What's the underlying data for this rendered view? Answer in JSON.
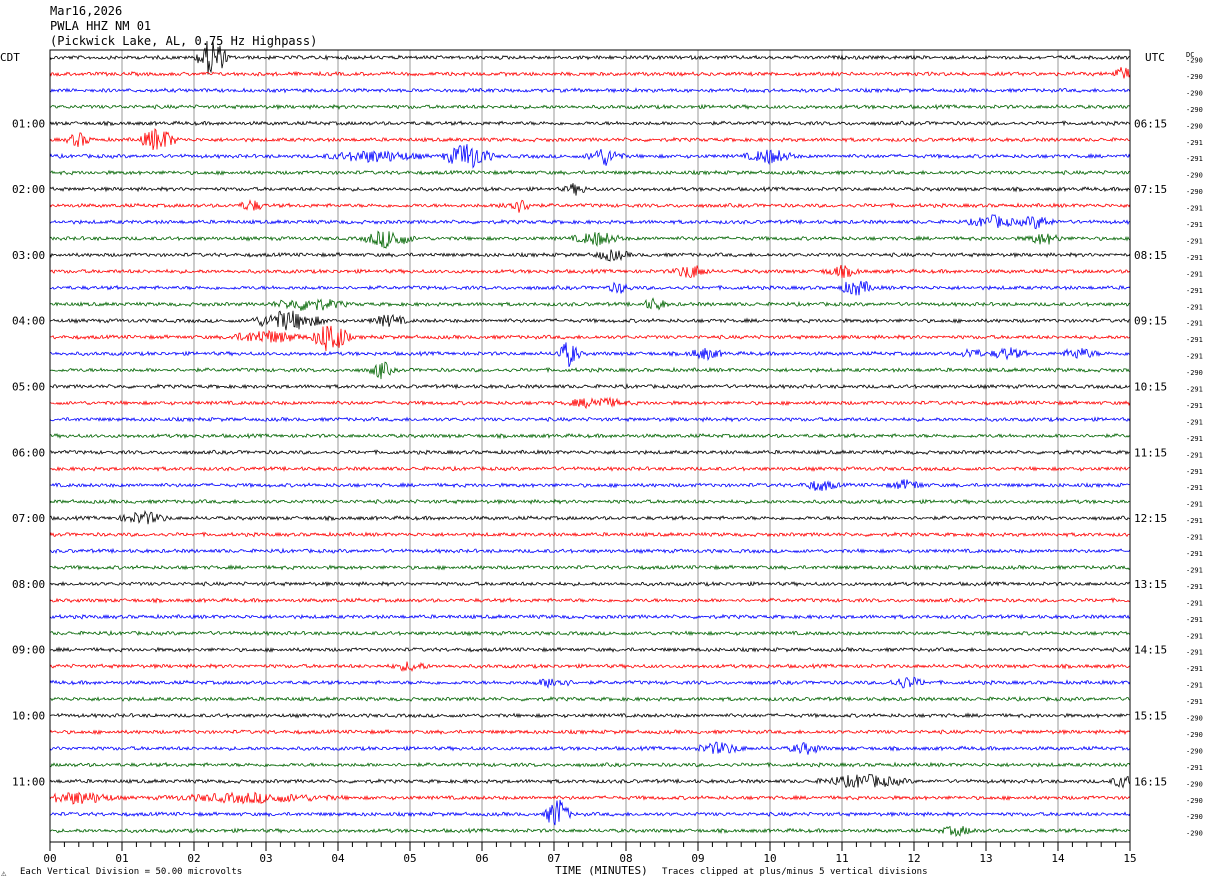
{
  "header": {
    "date": "Mar16,2026",
    "station": "PWLA HHZ NM 01",
    "description": "(Pickwick Lake, AL, 0.75 Hz Highpass)"
  },
  "left_zone_label": "CDT",
  "right_zone_label": "UTC",
  "dc_header": "DC",
  "footer": {
    "scale_text": "Each Vertical Division =   50.00 microvolts",
    "clip_text": "Traces clipped at plus/minus 5 vertical divisions",
    "corner_mark": "⚠"
  },
  "colors": {
    "trace": [
      "#000000",
      "#ff0000",
      "#0000ff",
      "#006400"
    ],
    "grid": "#808080"
  },
  "chart_data": {
    "type": "helicorder",
    "xlabel": "TIME (MINUTES)",
    "x_ticks": [
      "00",
      "01",
      "02",
      "03",
      "04",
      "05",
      "06",
      "07",
      "08",
      "09",
      "10",
      "11",
      "12",
      "13",
      "14",
      "15"
    ],
    "xlim": [
      0,
      15
    ],
    "row_count": 48,
    "left_hour_labels": [
      "01:00",
      "02:00",
      "03:00",
      "04:00",
      "05:00",
      "06:00",
      "07:00",
      "08:00",
      "09:00",
      "10:00",
      "11:00"
    ],
    "right_hour_labels": [
      "06:15",
      "07:15",
      "08:15",
      "09:15",
      "10:15",
      "11:15",
      "12:15",
      "13:15",
      "14:15",
      "15:15",
      "16:15"
    ],
    "hour_label_first_row": 4,
    "dc_offsets": [
      "-290",
      "-290",
      "-290",
      "-290",
      "-290",
      "-291",
      "-291",
      "-290",
      "-290",
      "-291",
      "-291",
      "-291",
      "-291",
      "-291",
      "-291",
      "-291",
      "-291",
      "-291",
      "-291",
      "-290",
      "-291",
      "-291",
      "-291",
      "-291",
      "-291",
      "-291",
      "-291",
      "-291",
      "-291",
      "-291",
      "-291",
      "-291",
      "-291",
      "-291",
      "-291",
      "-291",
      "-291",
      "-291",
      "-291",
      "-291",
      "-290",
      "-290",
      "-290",
      "-291",
      "-290",
      "-290",
      "-290",
      "-290"
    ],
    "events": [
      {
        "row": 0,
        "minute": 2.25,
        "amp": 5,
        "dur": 0.25
      },
      {
        "row": 1,
        "minute": 14.9,
        "amp": 1.5,
        "dur": 0.2
      },
      {
        "row": 5,
        "minute": 1.5,
        "amp": 3,
        "dur": 0.3
      },
      {
        "row": 5,
        "minute": 0.4,
        "amp": 1.6,
        "dur": 0.2
      },
      {
        "row": 6,
        "minute": 4.5,
        "amp": 1.3,
        "dur": 0.8
      },
      {
        "row": 6,
        "minute": 5.8,
        "amp": 3.2,
        "dur": 0.4
      },
      {
        "row": 6,
        "minute": 7.7,
        "amp": 2.1,
        "dur": 0.3
      },
      {
        "row": 6,
        "minute": 10.0,
        "amp": 1.6,
        "dur": 0.4
      },
      {
        "row": 8,
        "minute": 7.3,
        "amp": 1.2,
        "dur": 0.2
      },
      {
        "row": 9,
        "minute": 2.8,
        "amp": 1.3,
        "dur": 0.2
      },
      {
        "row": 9,
        "minute": 6.5,
        "amp": 1.5,
        "dur": 0.3
      },
      {
        "row": 10,
        "minute": 13.1,
        "amp": 1.4,
        "dur": 0.4
      },
      {
        "row": 10,
        "minute": 13.7,
        "amp": 1.4,
        "dur": 0.3
      },
      {
        "row": 11,
        "minute": 4.7,
        "amp": 2.2,
        "dur": 0.4
      },
      {
        "row": 11,
        "minute": 7.6,
        "amp": 1.5,
        "dur": 0.4
      },
      {
        "row": 11,
        "minute": 13.8,
        "amp": 1.3,
        "dur": 0.3
      },
      {
        "row": 12,
        "minute": 7.8,
        "amp": 1.2,
        "dur": 0.3
      },
      {
        "row": 13,
        "minute": 8.9,
        "amp": 1.6,
        "dur": 0.3
      },
      {
        "row": 13,
        "minute": 11.0,
        "amp": 1.2,
        "dur": 0.3
      },
      {
        "row": 14,
        "minute": 7.9,
        "amp": 1.2,
        "dur": 0.2
      },
      {
        "row": 14,
        "minute": 11.2,
        "amp": 1.8,
        "dur": 0.3
      },
      {
        "row": 15,
        "minute": 3.6,
        "amp": 1.5,
        "dur": 0.6
      },
      {
        "row": 15,
        "minute": 8.4,
        "amp": 1.4,
        "dur": 0.2
      },
      {
        "row": 16,
        "minute": 3.3,
        "amp": 2.3,
        "dur": 0.6
      },
      {
        "row": 16,
        "minute": 4.7,
        "amp": 1.3,
        "dur": 0.3
      },
      {
        "row": 17,
        "minute": 3.9,
        "amp": 4.2,
        "dur": 0.3
      },
      {
        "row": 17,
        "minute": 3.0,
        "amp": 1.5,
        "dur": 0.6
      },
      {
        "row": 18,
        "minute": 7.2,
        "amp": 3.0,
        "dur": 0.2
      },
      {
        "row": 18,
        "minute": 9.1,
        "amp": 1.2,
        "dur": 0.3
      },
      {
        "row": 18,
        "minute": 12.8,
        "amp": 1.2,
        "dur": 0.2
      },
      {
        "row": 18,
        "minute": 13.3,
        "amp": 1.3,
        "dur": 0.3
      },
      {
        "row": 18,
        "minute": 14.3,
        "amp": 1.2,
        "dur": 0.3
      },
      {
        "row": 19,
        "minute": 4.6,
        "amp": 2.0,
        "dur": 0.2
      },
      {
        "row": 21,
        "minute": 7.6,
        "amp": 1.2,
        "dur": 0.5
      },
      {
        "row": 26,
        "minute": 10.7,
        "amp": 1.2,
        "dur": 0.3
      },
      {
        "row": 26,
        "minute": 11.9,
        "amp": 1.1,
        "dur": 0.3
      },
      {
        "row": 28,
        "minute": 1.3,
        "amp": 1.4,
        "dur": 0.4
      },
      {
        "row": 37,
        "minute": 5.0,
        "amp": 1.0,
        "dur": 0.3
      },
      {
        "row": 38,
        "minute": 7.0,
        "amp": 1.2,
        "dur": 0.3
      },
      {
        "row": 38,
        "minute": 11.9,
        "amp": 1.3,
        "dur": 0.3
      },
      {
        "row": 42,
        "minute": 9.3,
        "amp": 1.3,
        "dur": 0.4
      },
      {
        "row": 42,
        "minute": 10.5,
        "amp": 1.2,
        "dur": 0.3
      },
      {
        "row": 44,
        "minute": 11.3,
        "amp": 1.5,
        "dur": 0.7
      },
      {
        "row": 44,
        "minute": 14.9,
        "amp": 1.4,
        "dur": 0.2
      },
      {
        "row": 45,
        "minute": 0.4,
        "amp": 1.4,
        "dur": 0.6
      },
      {
        "row": 45,
        "minute": 2.8,
        "amp": 1.0,
        "dur": 1.4
      },
      {
        "row": 46,
        "minute": 7.05,
        "amp": 4.2,
        "dur": 0.2
      },
      {
        "row": 47,
        "minute": 12.6,
        "amp": 1.0,
        "dur": 0.3
      }
    ]
  }
}
